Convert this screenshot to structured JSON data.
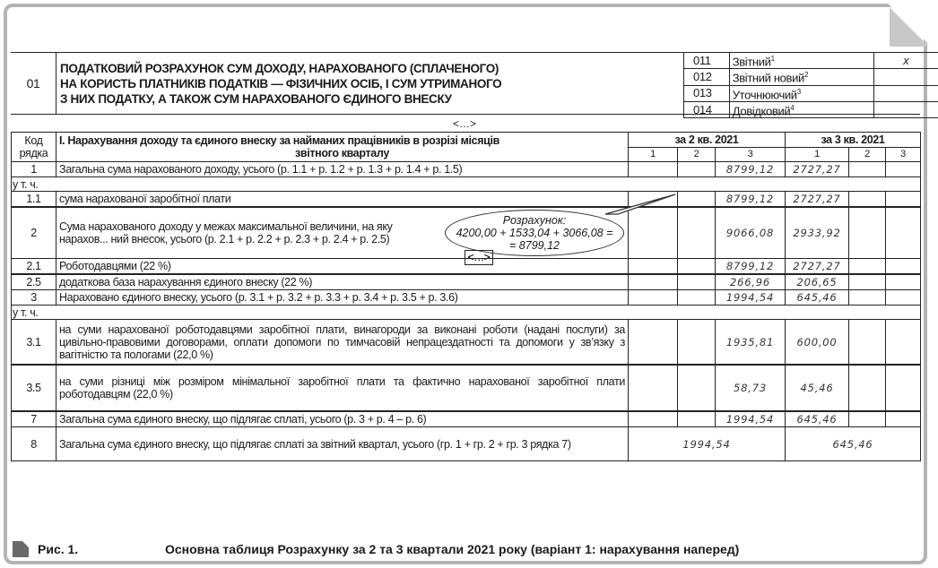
{
  "header": {
    "code": "01",
    "title_lines": [
      "ПОДАТКОВИЙ РОЗРАХУНОК СУМ ДОХОДУ, НАРАХОВАНОГО (СПЛАЧЕНОГО)",
      "НА КОРИСТЬ ПЛАТНИКІВ ПОДАТКІВ — ФІЗИЧНИХ ОСІБ, І СУМ УТРИМАНОГО",
      "З НИХ ПОДАТКУ, А ТАКОЖ СУМ НАРАХОВАНОГО ЄДИНОГО ВНЕСКУ"
    ],
    "types": [
      {
        "code": "011",
        "label": "Звітний",
        "note": "1",
        "mark": "x"
      },
      {
        "code": "012",
        "label": "Звітний новий",
        "note": "2",
        "mark": ""
      },
      {
        "code": "013",
        "label": "Уточнюючий",
        "note": "3",
        "mark": ""
      },
      {
        "code": "014",
        "label": "Довідковий",
        "note": "4",
        "mark": ""
      }
    ]
  },
  "ellipsis": "<…>",
  "table": {
    "code_header": [
      "Код",
      "рядка"
    ],
    "section_title_lines": [
      "І. Нарахування доходу та єдиного внеску за найманих працівників в розрізі місяців",
      "звітного кварталу"
    ],
    "quarters": [
      "за 2 кв. 2021",
      "за 3 кв. 2021"
    ],
    "months": [
      "1",
      "2",
      "3",
      "1",
      "2",
      "3"
    ],
    "rows": [
      {
        "type": "data",
        "code": "1",
        "desc": "Загальна сума нарахованого доходу, усього (р. 1.1 + р. 1.2 + р. 1.3 + р. 1.4 + р. 1.5)",
        "values": [
          "",
          "",
          "8799,12",
          "2727,27",
          "",
          ""
        ]
      },
      {
        "type": "sub",
        "text": "у т. ч."
      },
      {
        "type": "data",
        "code": "1.1",
        "desc": "сума нарахованої заробітної плати",
        "values": [
          "",
          "",
          "8799,12",
          "2727,27",
          "",
          ""
        ]
      },
      {
        "type": "ellipsis"
      },
      {
        "type": "data",
        "code": "2",
        "desc": "Сума нарахованого доходу у межах максимальної величини, на яку нарахов... ний внесок, усього (р. 2.1 + р. 2.2 + р. 2.3 + р. 2.4 + р. 2.5)",
        "values": [
          "",
          "",
          "9066,08",
          "2933,92",
          "",
          ""
        ],
        "tall": 56
      },
      {
        "type": "data",
        "code": "2.1",
        "desc": "Роботодавцями (22 %)",
        "values": [
          "",
          "",
          "8799,12",
          "2727,27",
          "",
          ""
        ]
      },
      {
        "type": "ellipsis"
      },
      {
        "type": "data",
        "code": "2.5",
        "desc": "додаткова база нарахування єдиного внеску (22 %)",
        "values": [
          "",
          "",
          "266,96",
          "206,65",
          "",
          ""
        ]
      },
      {
        "type": "data",
        "code": "3",
        "desc": "Нараховано єдиного внеску, усього (р. 3.1 + р. 3.2 + р. 3.3 + р. 3.4 + р. 3.5 + р. 3.6)",
        "values": [
          "",
          "",
          "1994,54",
          "645,46",
          "",
          ""
        ]
      },
      {
        "type": "sub",
        "text": "у т. ч."
      },
      {
        "type": "data",
        "code": "3.1",
        "desc": "на суми нарахованої роботодавцями заробітної плати, винагороди за виконані роботи (надані послуги) за цивільно-правовими договорами, оплати допомоги по тимчасовій непрацездатності та допомоги у зв’язку з вагітністю та пологами (22,0 %)",
        "values": [
          "",
          "",
          "1935,81",
          "600,00",
          "",
          ""
        ],
        "tall": 49,
        "justify": true
      },
      {
        "type": "ellipsis"
      },
      {
        "type": "data",
        "code": "3.5",
        "desc": "на суми різниці між розміром мінімальної заробітної плати та фактично нарахованої заробітної плати роботодавцям (22,0 %)",
        "values": [
          "",
          "",
          "58,73",
          "45,46",
          "",
          ""
        ],
        "tall": 50,
        "justify": true
      },
      {
        "type": "ellipsis"
      },
      {
        "type": "data",
        "code": "7",
        "desc": "Загальна сума єдиного внеску, що підлягає сплаті, усього (р. 3 + р. 4 – р. 6)",
        "values": [
          "",
          "",
          "1994,54",
          "645,46",
          "",
          ""
        ]
      },
      {
        "type": "total",
        "code": "8",
        "desc": "Загальна сума єдиного внеску, що підлягає сплаті за звітний квартал, усього (гр. 1 + гр. 2 + гр. 3 рядка 7)",
        "values": [
          "1994,54",
          "645,46"
        ],
        "tall": 37,
        "justify": true
      }
    ]
  },
  "callout": {
    "lines": [
      "Розрахунок:",
      "4200,00 + 1533,04 + 3066,08 =",
      "= 8799,12"
    ]
  },
  "caption": {
    "label": "Рис. 1.",
    "text": "Основна таблиця Розрахунку за 2 та 3 квартали 2021 року (варіант 1: нарахування наперед)"
  }
}
